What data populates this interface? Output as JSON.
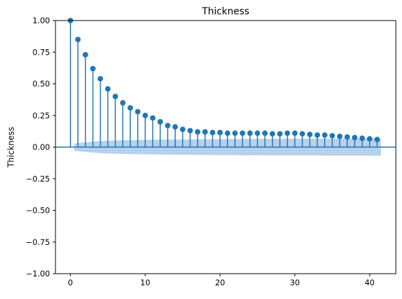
{
  "chart_data": {
    "type": "scatter",
    "subtype": "autocorrelation-stem",
    "title": "Thickness",
    "xlabel": "",
    "ylabel": "Thickness",
    "xlim": [
      -2,
      43.5
    ],
    "ylim": [
      -1,
      1
    ],
    "xticks": [
      0,
      10,
      20,
      30,
      40
    ],
    "yticks": [
      -1.0,
      -0.75,
      -0.5,
      -0.25,
      0.0,
      0.25,
      0.5,
      0.75,
      1.0
    ],
    "xtick_labels": [
      "0",
      "10",
      "20",
      "30",
      "40"
    ],
    "ytick_labels": [
      "−1.00",
      "−0.75",
      "−0.50",
      "−0.25",
      "0.00",
      "0.25",
      "0.50",
      "0.75",
      "1.00"
    ],
    "grid": false,
    "colors": {
      "stem": "#1f77b4",
      "band": "#b7d0ec"
    },
    "lags": [
      0,
      1,
      2,
      3,
      4,
      5,
      6,
      7,
      8,
      9,
      10,
      11,
      12,
      13,
      14,
      15,
      16,
      17,
      18,
      19,
      20,
      21,
      22,
      23,
      24,
      25,
      26,
      27,
      28,
      29,
      30,
      31,
      32,
      33,
      34,
      35,
      36,
      37,
      38,
      39,
      40,
      41
    ],
    "values": [
      1.0,
      0.85,
      0.73,
      0.62,
      0.54,
      0.46,
      0.4,
      0.35,
      0.31,
      0.28,
      0.25,
      0.23,
      0.2,
      0.17,
      0.16,
      0.14,
      0.13,
      0.12,
      0.12,
      0.115,
      0.115,
      0.11,
      0.11,
      0.11,
      0.11,
      0.11,
      0.11,
      0.105,
      0.105,
      0.11,
      0.11,
      0.105,
      0.1,
      0.095,
      0.095,
      0.09,
      0.085,
      0.08,
      0.075,
      0.07,
      0.065,
      0.06
    ],
    "confidence_band": [
      0.0,
      0.0285,
      0.0375,
      0.043,
      0.047,
      0.05,
      0.052,
      0.054,
      0.055,
      0.056,
      0.057,
      0.058,
      0.059,
      0.06,
      0.06,
      0.0605,
      0.061,
      0.0615,
      0.062,
      0.0625,
      0.063,
      0.0632,
      0.0635,
      0.064,
      0.0642,
      0.0645,
      0.0648,
      0.065,
      0.0652,
      0.0655,
      0.0658,
      0.066,
      0.0662,
      0.0665,
      0.0668,
      0.067,
      0.0672,
      0.0674,
      0.0676,
      0.0678,
      0.068,
      0.0682
    ]
  }
}
